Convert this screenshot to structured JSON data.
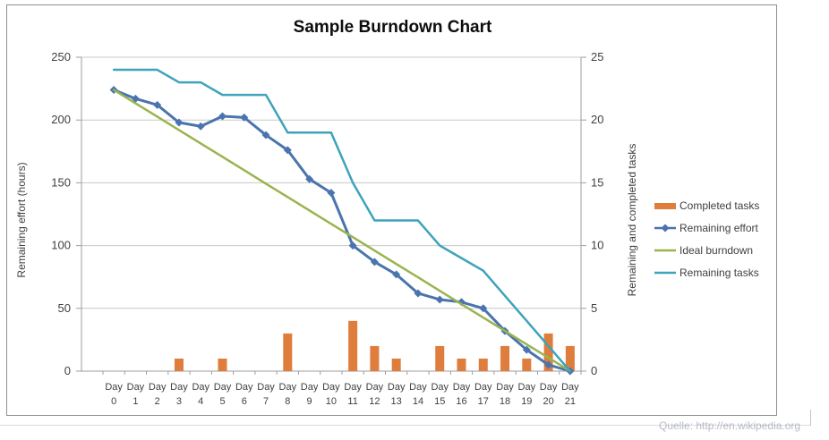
{
  "chart": {
    "title": "Sample Burndown Chart",
    "left_axis": {
      "title": "Remaining effort (hours)",
      "min": 0,
      "max": 250,
      "step": 50,
      "ticks": [
        0,
        50,
        100,
        150,
        200,
        250
      ]
    },
    "right_axis": {
      "title": "Remaining and completed tasks",
      "min": 0,
      "max": 25,
      "step": 5,
      "ticks": [
        0,
        5,
        10,
        15,
        20,
        25
      ]
    }
  },
  "chart_data": {
    "type": "combo",
    "title": "Sample Burndown Chart",
    "categories": [
      "Day 0",
      "Day 1",
      "Day 2",
      "Day 3",
      "Day 4",
      "Day 5",
      "Day 6",
      "Day 7",
      "Day 8",
      "Day 9",
      "Day 10",
      "Day 11",
      "Day 12",
      "Day 13",
      "Day 14",
      "Day 15",
      "Day 16",
      "Day 17",
      "Day 18",
      "Day 19",
      "Day 20",
      "Day 21"
    ],
    "series": [
      {
        "name": "Completed tasks",
        "type": "bar",
        "axis": "right",
        "color": "#de7d3c",
        "values": [
          0,
          0,
          0,
          1,
          0,
          1,
          0,
          0,
          3,
          0,
          0,
          4,
          2,
          1,
          0,
          2,
          1,
          1,
          2,
          1,
          3,
          2
        ]
      },
      {
        "name": "Remaining effort",
        "type": "line",
        "marker": "diamond",
        "axis": "left",
        "color": "#4a74ae",
        "values": [
          224,
          217,
          212,
          198,
          195,
          203,
          202,
          188,
          176,
          153,
          142,
          100,
          87,
          77,
          62,
          57,
          55,
          50,
          32,
          17,
          5,
          0
        ]
      },
      {
        "name": "Ideal burndown",
        "type": "line",
        "marker": "none",
        "axis": "left",
        "color": "#9ab450",
        "values": [
          224,
          213.3,
          202.7,
          192,
          181.3,
          170.7,
          160,
          149.3,
          138.7,
          128,
          117.3,
          106.7,
          96,
          85.3,
          74.7,
          64,
          53.3,
          42.7,
          32,
          21.3,
          10.7,
          0
        ]
      },
      {
        "name": "Remaining tasks",
        "type": "line",
        "marker": "none",
        "axis": "right",
        "color": "#3ea3bc",
        "values": [
          24,
          24,
          24,
          23,
          23,
          22,
          22,
          22,
          19,
          19,
          19,
          15,
          12,
          12,
          12,
          10,
          9,
          8,
          6,
          4,
          2,
          0
        ]
      }
    ],
    "left_ylim": [
      0,
      250
    ],
    "right_ylim": [
      0,
      25
    ],
    "grid": true,
    "legend_position": "right"
  },
  "legend": {
    "items": [
      {
        "label": "Completed tasks",
        "swatch": "bar",
        "color": "#de7d3c"
      },
      {
        "label": "Remaining effort",
        "swatch": "line-diamond",
        "color": "#4a74ae"
      },
      {
        "label": "Ideal burndown",
        "swatch": "line",
        "color": "#9ab450"
      },
      {
        "label": "Remaining tasks",
        "swatch": "line",
        "color": "#3ea3bc"
      }
    ]
  },
  "source": "Quelle: http://en.wikipedia.org",
  "colors": {
    "gridline": "#c8c8c8",
    "axis_line": "#9e9e9e",
    "frame_border": "#8f8f8f",
    "tick_label": "#3f3f3f",
    "title_text": "#0d0d0d",
    "source_text": "#b6bac6"
  }
}
